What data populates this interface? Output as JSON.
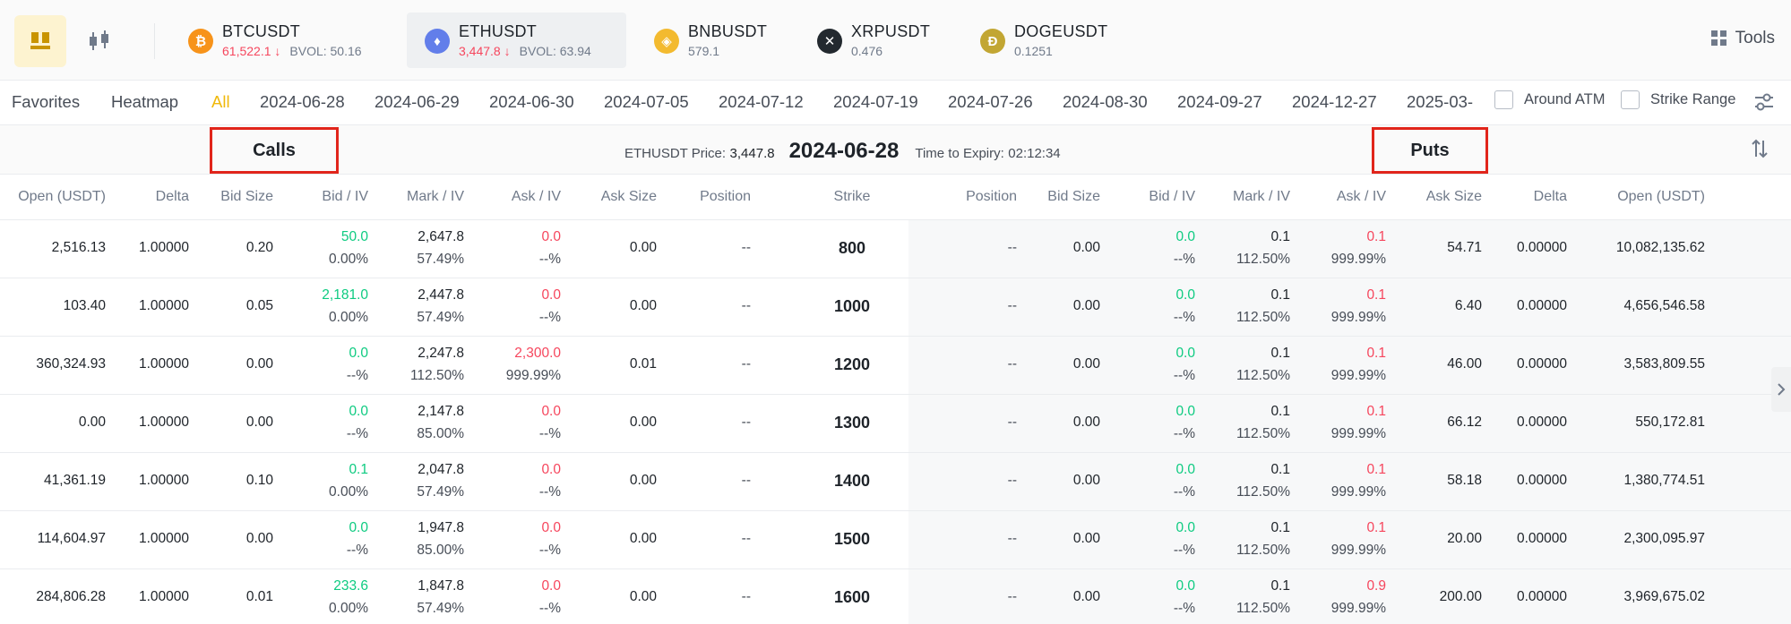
{
  "symbols": [
    {
      "name": "BTCUSDT",
      "price": "61,522.1",
      "bvol": "BVOL: 50.16",
      "icon": "bitcoin-icon",
      "color": "#f7931a",
      "glyph": "₿",
      "down": true
    },
    {
      "name": "ETHUSDT",
      "price": "3,447.8",
      "bvol": "BVOL: 63.94",
      "icon": "ethereum-icon",
      "color": "#627eea",
      "glyph": "♦",
      "down": true
    },
    {
      "name": "BNBUSDT",
      "price": "579.1",
      "bvol": "",
      "icon": "bnb-icon",
      "color": "#f3ba2f",
      "glyph": "◈",
      "down": false
    },
    {
      "name": "XRPUSDT",
      "price": "0.476",
      "bvol": "",
      "icon": "xrp-icon",
      "color": "#23292f",
      "glyph": "✕",
      "down": false
    },
    {
      "name": "DOGEUSDT",
      "price": "0.1251",
      "bvol": "",
      "icon": "doge-icon",
      "color": "#c2a633",
      "glyph": "Ð",
      "down": false
    }
  ],
  "tools_label": "Tools",
  "tabs": [
    "Favorites",
    "Heatmap",
    "All"
  ],
  "expiries": [
    "2024-06-28",
    "2024-06-29",
    "2024-06-30",
    "2024-07-05",
    "2024-07-12",
    "2024-07-19",
    "2024-07-26",
    "2024-08-30",
    "2024-09-27",
    "2024-12-27",
    "2025-03-"
  ],
  "checkboxes": {
    "around_atm": "Around ATM",
    "strike_range": "Strike Range"
  },
  "info": {
    "calls_label": "Calls",
    "puts_label": "Puts",
    "price_label": "ETHUSDT Price:",
    "price_value": "3,447.8",
    "date": "2024-06-28",
    "expiry_label": "Time to Expiry:",
    "expiry_value": "02:12:34"
  },
  "columns": {
    "calls": [
      "Open (USDT)",
      "Delta",
      "Bid Size",
      "Bid / IV",
      "Mark / IV",
      "Ask / IV",
      "Ask Size",
      "Position"
    ],
    "strike": "Strike",
    "puts": [
      "Position",
      "Bid Size",
      "Bid / IV",
      "Mark / IV",
      "Ask / IV",
      "Ask Size",
      "Delta",
      "Open (USDT)"
    ]
  },
  "rows": [
    {
      "strike": "800",
      "call": {
        "open": "2,516.13",
        "delta": "1.00000",
        "bid_size": "0.20",
        "bid": "50.0",
        "bid_iv": "0.00%",
        "mark": "2,647.8",
        "mark_iv": "57.49%",
        "ask": "0.0",
        "ask_iv": "--%",
        "ask_size": "0.00",
        "position": "--"
      },
      "put": {
        "position": "--",
        "bid_size": "0.00",
        "bid": "0.0",
        "bid_iv": "--%",
        "mark": "0.1",
        "mark_iv": "112.50%",
        "ask": "0.1",
        "ask_iv": "999.99%",
        "ask_size": "54.71",
        "delta": "0.00000",
        "open": "10,082,135.62"
      }
    },
    {
      "strike": "1000",
      "call": {
        "open": "103.40",
        "delta": "1.00000",
        "bid_size": "0.05",
        "bid": "2,181.0",
        "bid_iv": "0.00%",
        "mark": "2,447.8",
        "mark_iv": "57.49%",
        "ask": "0.0",
        "ask_iv": "--%",
        "ask_size": "0.00",
        "position": "--"
      },
      "put": {
        "position": "--",
        "bid_size": "0.00",
        "bid": "0.0",
        "bid_iv": "--%",
        "mark": "0.1",
        "mark_iv": "112.50%",
        "ask": "0.1",
        "ask_iv": "999.99%",
        "ask_size": "6.40",
        "delta": "0.00000",
        "open": "4,656,546.58"
      }
    },
    {
      "strike": "1200",
      "call": {
        "open": "360,324.93",
        "delta": "1.00000",
        "bid_size": "0.00",
        "bid": "0.0",
        "bid_iv": "--%",
        "mark": "2,247.8",
        "mark_iv": "112.50%",
        "ask": "2,300.0",
        "ask_iv": "999.99%",
        "ask_size": "0.01",
        "position": "--"
      },
      "put": {
        "position": "--",
        "bid_size": "0.00",
        "bid": "0.0",
        "bid_iv": "--%",
        "mark": "0.1",
        "mark_iv": "112.50%",
        "ask": "0.1",
        "ask_iv": "999.99%",
        "ask_size": "46.00",
        "delta": "0.00000",
        "open": "3,583,809.55"
      }
    },
    {
      "strike": "1300",
      "call": {
        "open": "0.00",
        "delta": "1.00000",
        "bid_size": "0.00",
        "bid": "0.0",
        "bid_iv": "--%",
        "mark": "2,147.8",
        "mark_iv": "85.00%",
        "ask": "0.0",
        "ask_iv": "--%",
        "ask_size": "0.00",
        "position": "--"
      },
      "put": {
        "position": "--",
        "bid_size": "0.00",
        "bid": "0.0",
        "bid_iv": "--%",
        "mark": "0.1",
        "mark_iv": "112.50%",
        "ask": "0.1",
        "ask_iv": "999.99%",
        "ask_size": "66.12",
        "delta": "0.00000",
        "open": "550,172.81"
      }
    },
    {
      "strike": "1400",
      "call": {
        "open": "41,361.19",
        "delta": "1.00000",
        "bid_size": "0.10",
        "bid": "0.1",
        "bid_iv": "0.00%",
        "mark": "2,047.8",
        "mark_iv": "57.49%",
        "ask": "0.0",
        "ask_iv": "--%",
        "ask_size": "0.00",
        "position": "--"
      },
      "put": {
        "position": "--",
        "bid_size": "0.00",
        "bid": "0.0",
        "bid_iv": "--%",
        "mark": "0.1",
        "mark_iv": "112.50%",
        "ask": "0.1",
        "ask_iv": "999.99%",
        "ask_size": "58.18",
        "delta": "0.00000",
        "open": "1,380,774.51"
      }
    },
    {
      "strike": "1500",
      "call": {
        "open": "114,604.97",
        "delta": "1.00000",
        "bid_size": "0.00",
        "bid": "0.0",
        "bid_iv": "--%",
        "mark": "1,947.8",
        "mark_iv": "85.00%",
        "ask": "0.0",
        "ask_iv": "--%",
        "ask_size": "0.00",
        "position": "--"
      },
      "put": {
        "position": "--",
        "bid_size": "0.00",
        "bid": "0.0",
        "bid_iv": "--%",
        "mark": "0.1",
        "mark_iv": "112.50%",
        "ask": "0.1",
        "ask_iv": "999.99%",
        "ask_size": "20.00",
        "delta": "0.00000",
        "open": "2,300,095.97"
      }
    },
    {
      "strike": "1600",
      "call": {
        "open": "284,806.28",
        "delta": "1.00000",
        "bid_size": "0.01",
        "bid": "233.6",
        "bid_iv": "0.00%",
        "mark": "1,847.8",
        "mark_iv": "57.49%",
        "ask": "0.0",
        "ask_iv": "--%",
        "ask_size": "0.00",
        "position": "--"
      },
      "put": {
        "position": "--",
        "bid_size": "0.00",
        "bid": "0.0",
        "bid_iv": "--%",
        "mark": "0.1",
        "mark_iv": "112.50%",
        "ask": "0.9",
        "ask_iv": "999.99%",
        "ask_size": "200.00",
        "delta": "0.00000",
        "open": "3,969,675.02"
      }
    }
  ]
}
